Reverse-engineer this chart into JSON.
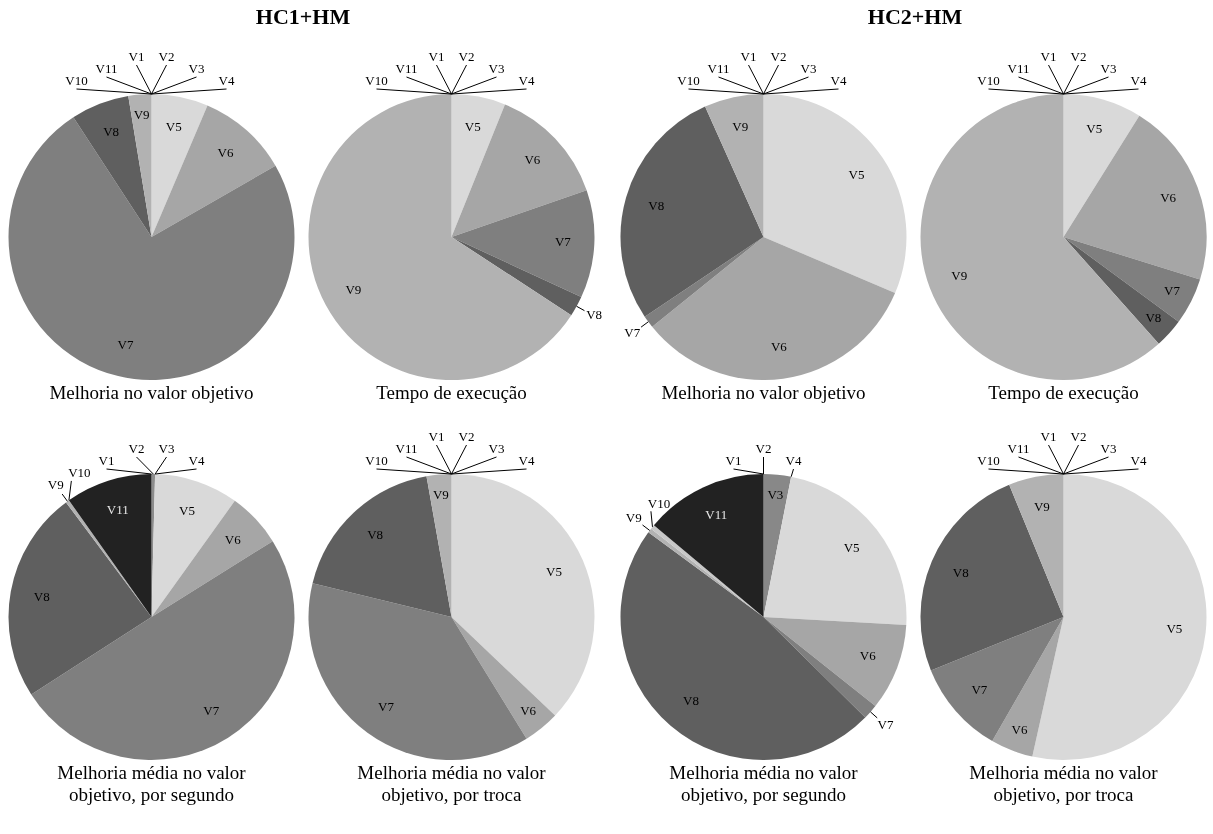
{
  "chart_data": [
    {
      "type": "pie",
      "subtitle": "HC1+HM",
      "title": "Melhoria no valor objetivo",
      "categories": [
        "V1",
        "V2",
        "V3",
        "V4",
        "V5",
        "V6",
        "V7",
        "V8",
        "V9",
        "V10",
        "V11"
      ],
      "values": [
        0,
        0,
        0,
        0,
        6.4,
        10.3,
        74.1,
        6.6,
        2.6,
        0,
        0
      ],
      "colors": [
        "#404040",
        "#8c8c8c",
        "#999999",
        "#6e6e6e",
        "#d9d9d9",
        "#a6a6a6",
        "#7f7f7f",
        "#5f5f5f",
        "#b2b2b2",
        "#c8c8c8",
        "#222222"
      ]
    },
    {
      "type": "pie",
      "title": "Tempo de execução",
      "categories": [
        "V1",
        "V2",
        "V3",
        "V4",
        "V5",
        "V6",
        "V7",
        "V8",
        "V9",
        "V10",
        "V11"
      ],
      "values": [
        0,
        0,
        0,
        0,
        6.1,
        13.6,
        12.2,
        2.3,
        65.8,
        0,
        0
      ],
      "colors": [
        "#404040",
        "#8c8c8c",
        "#999999",
        "#6e6e6e",
        "#d9d9d9",
        "#a6a6a6",
        "#7f7f7f",
        "#5f5f5f",
        "#b2b2b2",
        "#c8c8c8",
        "#222222"
      ]
    },
    {
      "type": "pie",
      "subtitle": "HC2+HM",
      "title": "Melhoria no valor objetivo",
      "categories": [
        "V1",
        "V2",
        "V3",
        "V4",
        "V5",
        "V6",
        "V7",
        "V8",
        "V9",
        "V10",
        "V11"
      ],
      "values": [
        0,
        0,
        0,
        0,
        31.4,
        32.8,
        1.4,
        27.7,
        6.7,
        0,
        0
      ],
      "colors": [
        "#404040",
        "#8c8c8c",
        "#999999",
        "#6e6e6e",
        "#d9d9d9",
        "#a6a6a6",
        "#7f7f7f",
        "#5f5f5f",
        "#b2b2b2",
        "#c8c8c8",
        "#222222"
      ]
    },
    {
      "type": "pie",
      "title": "Tempo de execução",
      "categories": [
        "V1",
        "V2",
        "V3",
        "V4",
        "V5",
        "V6",
        "V7",
        "V8",
        "V9",
        "V10",
        "V11"
      ],
      "values": [
        0,
        0,
        0,
        0,
        8.9,
        20.9,
        5.3,
        3.3,
        61.6,
        0,
        0
      ],
      "colors": [
        "#404040",
        "#8c8c8c",
        "#999999",
        "#6e6e6e",
        "#d9d9d9",
        "#a6a6a6",
        "#7f7f7f",
        "#5f5f5f",
        "#b2b2b2",
        "#c8c8c8",
        "#222222"
      ]
    },
    {
      "type": "pie",
      "title": "Melhoria média no valor objetivo, por segundo",
      "categories": [
        "V1",
        "V2",
        "V3",
        "V4",
        "V5",
        "V6",
        "V7",
        "V8",
        "V9",
        "V10",
        "V11"
      ],
      "values": [
        0,
        0.4,
        0,
        0,
        9.5,
        6.2,
        49.8,
        23.9,
        0.4,
        0,
        9.8
      ],
      "colors": [
        "#404040",
        "#8c8c8c",
        "#999999",
        "#6e6e6e",
        "#d9d9d9",
        "#a6a6a6",
        "#7f7f7f",
        "#5f5f5f",
        "#b2b2b2",
        "#c8c8c8",
        "#222222"
      ]
    },
    {
      "type": "pie",
      "title": "Melhoria média no valor objetivo, por troca",
      "categories": [
        "V1",
        "V2",
        "V3",
        "V4",
        "V5",
        "V6",
        "V7",
        "V8",
        "V9",
        "V10",
        "V11"
      ],
      "values": [
        0,
        0,
        0,
        0,
        37.1,
        4.1,
        37.6,
        18.4,
        2.8,
        0,
        0
      ],
      "colors": [
        "#404040",
        "#8c8c8c",
        "#999999",
        "#6e6e6e",
        "#d9d9d9",
        "#a6a6a6",
        "#7f7f7f",
        "#5f5f5f",
        "#b2b2b2",
        "#c8c8c8",
        "#222222"
      ]
    },
    {
      "type": "pie",
      "title": "Melhoria média no valor objetivo, por segundo",
      "categories": [
        "V1",
        "V2",
        "V3",
        "V4",
        "V5",
        "V6",
        "V7",
        "V8",
        "V9",
        "V10",
        "V11"
      ],
      "values": [
        0,
        0,
        3.1,
        0,
        22.8,
        9.8,
        1.7,
        47.7,
        0.5,
        0.5,
        13.9
      ],
      "colors": [
        "#404040",
        "#8c8c8c",
        "#888888",
        "#6e6e6e",
        "#d9d9d9",
        "#a6a6a6",
        "#7f7f7f",
        "#5f5f5f",
        "#b2b2b2",
        "#c8c8c8",
        "#222222"
      ]
    },
    {
      "type": "pie",
      "title": "Melhoria média no valor objetivo, por troca",
      "categories": [
        "V1",
        "V2",
        "V3",
        "V4",
        "V5",
        "V6",
        "V7",
        "V8",
        "V9",
        "V10",
        "V11"
      ],
      "values": [
        0,
        0,
        0,
        0,
        53.5,
        4.8,
        10.6,
        24.9,
        6.2,
        0,
        0
      ],
      "colors": [
        "#404040",
        "#8c8c8c",
        "#999999",
        "#6e6e6e",
        "#d9d9d9",
        "#a6a6a6",
        "#7f7f7f",
        "#5f5f5f",
        "#b2b2b2",
        "#c8c8c8",
        "#222222"
      ]
    }
  ]
}
